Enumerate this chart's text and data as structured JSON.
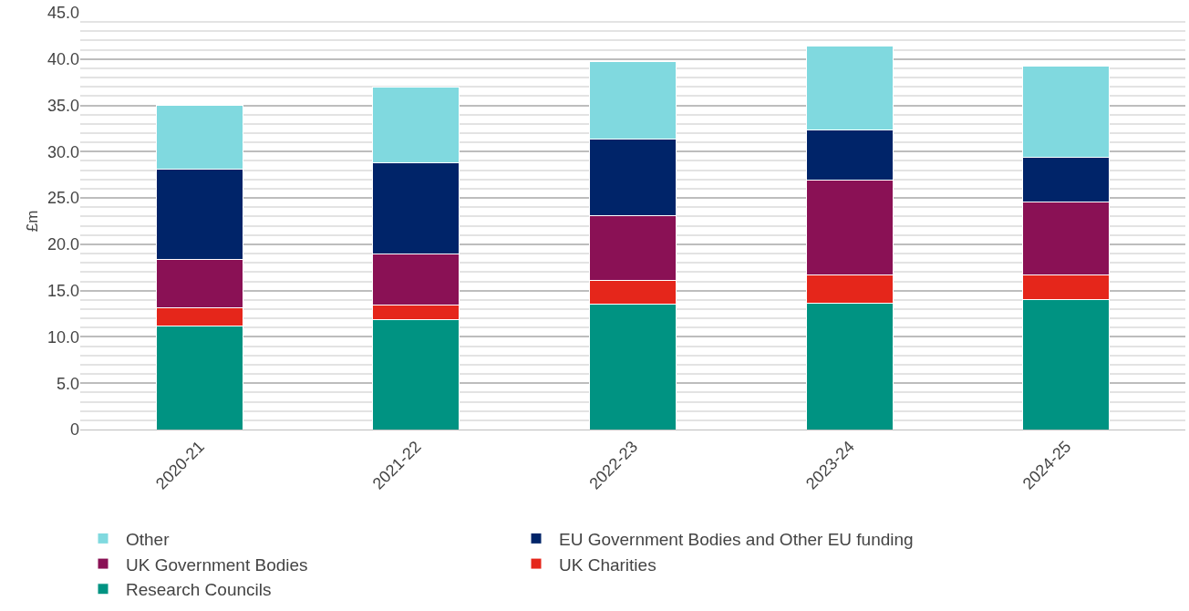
{
  "chart_data": {
    "type": "bar",
    "stacked": true,
    "ylabel": "£m",
    "categories": [
      "2020-21",
      "2021-22",
      "2022-23",
      "2023-24",
      "2024-25"
    ],
    "series": [
      {
        "name": "Research Councils",
        "color": "#009382",
        "values": [
          11.2,
          11.9,
          13.5,
          13.6,
          14.0
        ]
      },
      {
        "name": "UK Charities",
        "color": "#e5261b",
        "values": [
          1.9,
          1.5,
          2.6,
          3.1,
          2.7
        ]
      },
      {
        "name": "UK Government Bodies",
        "color": "#8a1155",
        "values": [
          5.3,
          5.6,
          7.0,
          10.2,
          7.9
        ]
      },
      {
        "name": "EU Government Bodies and Other EU funding",
        "color": "#002469",
        "values": [
          9.7,
          9.8,
          8.3,
          5.4,
          4.8
        ]
      },
      {
        "name": "Other",
        "color": "#80d9df",
        "values": [
          6.9,
          8.2,
          8.3,
          9.1,
          9.8
        ]
      }
    ],
    "ylim": [
      0,
      45
    ],
    "yticks": [
      {
        "value": 0,
        "label": "0"
      },
      {
        "value": 5,
        "label": "5.0"
      },
      {
        "value": 10,
        "label": "10.0"
      },
      {
        "value": 15,
        "label": "15.0"
      },
      {
        "value": 20,
        "label": "20.0"
      },
      {
        "value": 25,
        "label": "25.0"
      },
      {
        "value": 30,
        "label": "30.0"
      },
      {
        "value": 35,
        "label": "35.0"
      },
      {
        "value": 40,
        "label": "40.0"
      },
      {
        "value": 45,
        "label": "45.0"
      }
    ],
    "grid": "y",
    "legend": "bottom"
  }
}
